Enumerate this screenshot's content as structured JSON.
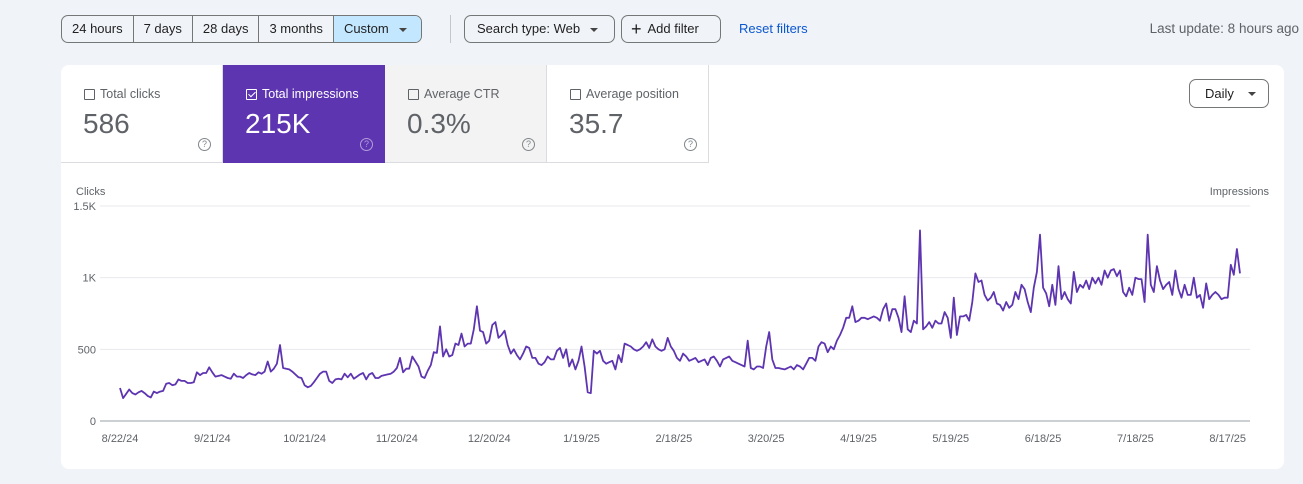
{
  "toolbar": {
    "ranges": [
      "24 hours",
      "7 days",
      "28 days",
      "3 months",
      "Custom"
    ],
    "selected_range": "Custom",
    "search_type": "Search type: Web",
    "add_filter": "Add filter",
    "reset_filters": "Reset filters",
    "last_update": "Last update: 8 hours ago"
  },
  "metrics": [
    {
      "label": "Total clicks",
      "value": "586",
      "checked": false
    },
    {
      "label": "Total impressions",
      "value": "215K",
      "checked": true
    },
    {
      "label": "Average CTR",
      "value": "0.3%",
      "checked": false
    },
    {
      "label": "Average position",
      "value": "35.7",
      "checked": false
    }
  ],
  "granularity": "Daily",
  "colors": {
    "accent": "#5e35b1",
    "selected_range_bg": "#c2e7ff",
    "link": "#0b57d0"
  },
  "chart_data": {
    "type": "line",
    "left_axis_label": "Clicks",
    "right_axis_label": "Impressions",
    "ylim": [
      0,
      1500
    ],
    "yticks": [
      {
        "v": 0,
        "label": "0"
      },
      {
        "v": 500,
        "label": "500"
      },
      {
        "v": 1000,
        "label": "1K"
      },
      {
        "v": 1500,
        "label": "1.5K"
      }
    ],
    "xticks": [
      "8/22/24",
      "9/21/24",
      "10/21/24",
      "11/20/24",
      "12/20/24",
      "1/19/25",
      "2/18/25",
      "3/20/25",
      "4/19/25",
      "5/19/25",
      "6/18/25",
      "7/18/25",
      "8/17/25"
    ],
    "grid": true,
    "series": [
      {
        "color": "#5e35b1",
        "values": [
          230,
          160,
          190,
          220,
          195,
          185,
          200,
          210,
          195,
          175,
          165,
          205,
          195,
          205,
          210,
          260,
          265,
          250,
          255,
          290,
          280,
          280,
          265,
          265,
          270,
          340,
          320,
          335,
          335,
          375,
          340,
          310,
          315,
          320,
          310,
          300,
          295,
          330,
          310,
          310,
          300,
          320,
          335,
          325,
          320,
          340,
          330,
          345,
          415,
          345,
          365,
          400,
          530,
          370,
          365,
          360,
          345,
          325,
          305,
          300,
          250,
          235,
          245,
          270,
          300,
          330,
          345,
          345,
          280,
          265,
          290,
          295,
          290,
          330,
          305,
          330,
          295,
          310,
          325,
          335,
          290,
          325,
          335,
          300,
          300,
          315,
          320,
          325,
          330,
          345,
          370,
          440,
          340,
          365,
          365,
          450,
          415,
          380,
          310,
          300,
          350,
          390,
          480,
          475,
          660,
          450,
          500,
          450,
          460,
          540,
          530,
          610,
          520,
          540,
          540,
          640,
          800,
          630,
          620,
          540,
          560,
          670,
          690,
          580,
          600,
          630,
          530,
          470,
          500,
          460,
          430,
          470,
          520,
          510,
          440,
          440,
          400,
          390,
          410,
          450,
          430,
          430,
          490,
          510,
          440,
          500,
          380,
          430,
          360,
          420,
          520,
          380,
          200,
          195,
          490,
          470,
          490,
          420,
          400,
          410,
          420,
          360,
          460,
          410,
          540,
          530,
          520,
          500,
          490,
          500,
          520,
          550,
          510,
          570,
          520,
          500,
          490,
          500,
          580,
          520,
          490,
          440,
          420,
          470,
          450,
          420,
          430,
          440,
          410,
          420,
          430,
          390,
          440,
          450,
          420,
          380,
          430,
          440,
          450,
          420,
          410,
          400,
          390,
          380,
          560,
          370,
          360,
          380,
          380,
          370,
          520,
          620,
          430,
          370,
          370,
          365,
          360,
          370,
          380,
          360,
          390,
          380,
          360,
          400,
          440,
          440,
          420,
          520,
          550,
          540,
          480,
          520,
          500,
          560,
          600,
          650,
          720,
          720,
          800,
          690,
          700,
          720,
          720,
          710,
          720,
          730,
          720,
          700,
          780,
          820,
          700,
          780,
          780,
          720,
          620,
          870,
          640,
          620,
          700,
          680,
          1330,
          640,
          660,
          690,
          650,
          700,
          680,
          680,
          760,
          720,
          580,
          860,
          600,
          730,
          730,
          740,
          700,
          830,
          1030,
          970,
          980,
          880,
          840,
          860,
          900,
          820,
          810,
          770,
          830,
          790,
          810,
          900,
          850,
          950,
          920,
          830,
          760,
          930,
          1040,
          1300,
          930,
          890,
          800,
          950,
          810,
          1080,
          850,
          900,
          850,
          820,
          1040,
          900,
          950,
          930,
          980,
          920,
          1000,
          960,
          1000,
          950,
          1050,
          1000,
          1050,
          1060,
          1010,
          1050,
          900,
          870,
          930,
          880,
          1000,
          990,
          990,
          830,
          1300,
          950,
          900,
          1080,
          980,
          920,
          950,
          970,
          880,
          1050,
          920,
          860,
          950,
          880,
          880,
          1000,
          860,
          880,
          790,
          960,
          850,
          880,
          900,
          880,
          850,
          860,
          860,
          1090,
          1020,
          1200,
          1030
        ]
      }
    ]
  }
}
